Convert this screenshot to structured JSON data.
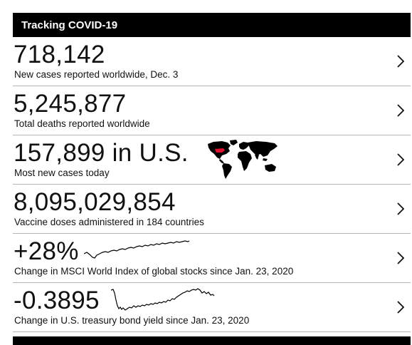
{
  "header": {
    "title": "Tracking COVID-19"
  },
  "rows": [
    {
      "value": "718,142",
      "label": "New cases reported worldwide, Dec. 3"
    },
    {
      "value": "5,245,877",
      "label": "Total deaths reported worldwide"
    },
    {
      "value": "157,899 in U.S.",
      "label": "Most new cases today"
    },
    {
      "value": "8,095,029,854",
      "label": "Vaccine doses administered in 184 countries"
    },
    {
      "value": "+28%",
      "label": "Change in MSCI World Index of global stocks since Jan. 23, 2020"
    },
    {
      "value": "-0.3895",
      "label": "Change in U.S. treasury bond yield since Jan. 23, 2020"
    }
  ],
  "icons": {
    "chevron": "chevron-right-icon",
    "map": "world-map-icon",
    "map_highlight_color": "#e0102f"
  },
  "colors": {
    "header_bg": "#000000",
    "text": "#111111",
    "divider": "#b5b5b5"
  }
}
